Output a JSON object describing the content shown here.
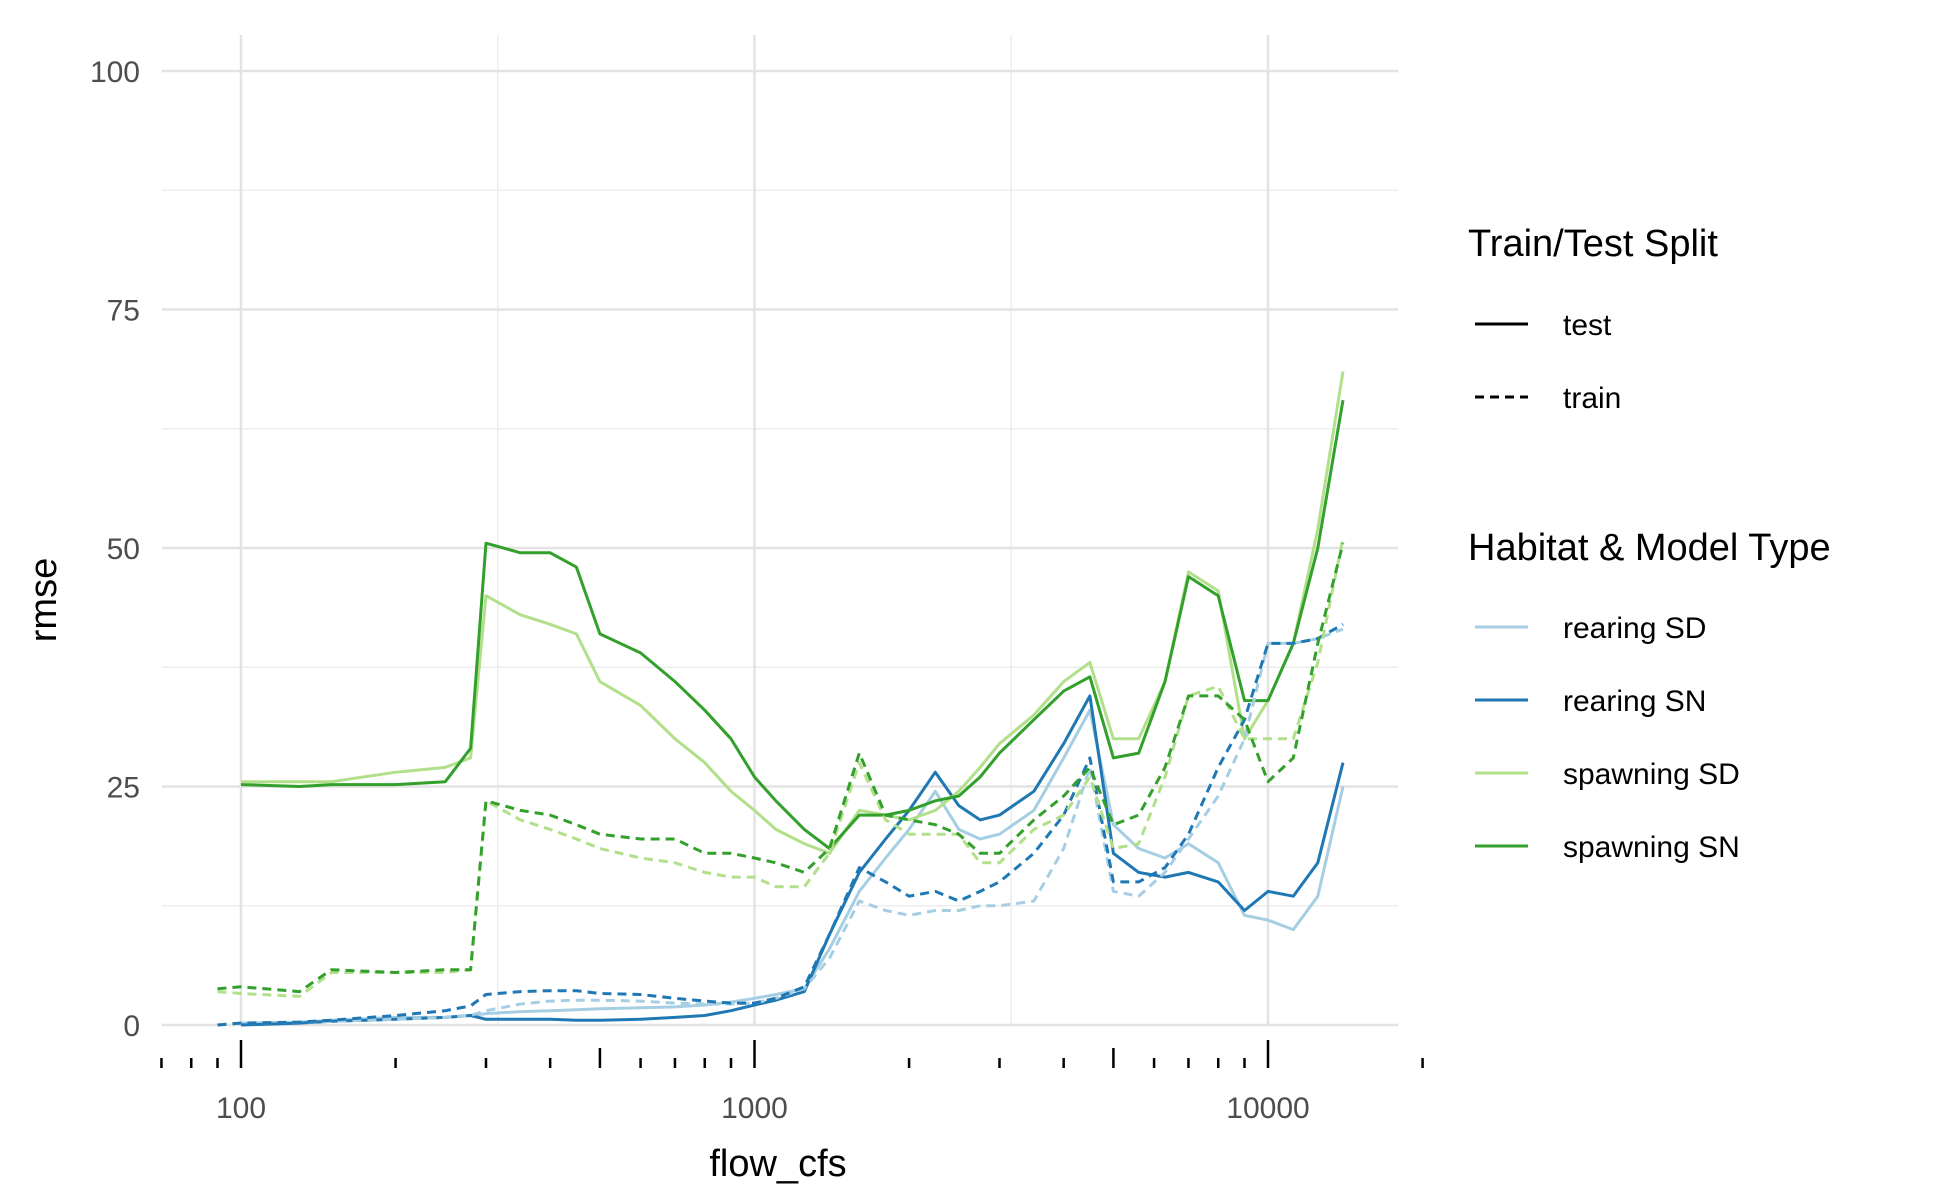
{
  "chart_data": {
    "type": "line",
    "title": "",
    "xlabel": "flow_cfs",
    "ylabel": "rmse",
    "x_scale": "log10",
    "xlim": [
      70,
      20000
    ],
    "ylim": [
      0,
      100
    ],
    "x_ticks": [
      100,
      1000,
      10000
    ],
    "x_tick_labels": [
      "100",
      "1000",
      "10000"
    ],
    "y_ticks": [
      0,
      25,
      50,
      75,
      100
    ],
    "y_tick_labels": [
      "0",
      "25",
      "50",
      "75",
      "100"
    ],
    "grid": true,
    "legend_position": "right",
    "legend_linetype": {
      "title": "Train/Test Split",
      "items": [
        {
          "label": "test",
          "dash": "solid"
        },
        {
          "label": "train",
          "dash": "dashed"
        }
      ]
    },
    "legend_color": {
      "title": "Habitat & Model Type",
      "items": [
        {
          "label": "rearing SD",
          "color": "#a6cee3"
        },
        {
          "label": "rearing SN",
          "color": "#1f78b4"
        },
        {
          "label": "spawning SD",
          "color": "#b2df8a"
        },
        {
          "label": "spawning SN",
          "color": "#33a02c"
        }
      ]
    },
    "series": [
      {
        "habitat": "rearing SD",
        "split": "test",
        "color": "#a6cee3",
        "dash": "solid",
        "x": [
          100,
          130,
          150,
          200,
          250,
          280,
          300,
          350,
          400,
          450,
          500,
          600,
          700,
          800,
          900,
          1000,
          1100,
          1250,
          1400,
          1600,
          1800,
          2000,
          2250,
          2500,
          2750,
          3000,
          3500,
          4000,
          4500,
          5000,
          5600,
          6300,
          7000,
          8000,
          9000,
          10000,
          11200,
          12500,
          14000
        ],
        "y": [
          0.2,
          0.3,
          0.5,
          0.8,
          0.8,
          1.0,
          1.2,
          1.4,
          1.5,
          1.6,
          1.7,
          1.8,
          1.9,
          2.1,
          2.4,
          2.8,
          3.2,
          3.8,
          8.0,
          14.0,
          17.5,
          20.5,
          24.5,
          20.5,
          19.5,
          20.0,
          22.5,
          28.0,
          33.0,
          21.0,
          18.5,
          17.5,
          19.0,
          17.0,
          11.5,
          11.0,
          10.0,
          13.5,
          25.0
        ]
      },
      {
        "habitat": "rearing SN",
        "split": "test",
        "color": "#1f78b4",
        "dash": "solid",
        "x": [
          100,
          130,
          150,
          200,
          250,
          280,
          300,
          350,
          400,
          450,
          500,
          600,
          700,
          800,
          900,
          1000,
          1100,
          1250,
          1400,
          1600,
          1800,
          2000,
          2250,
          2500,
          2750,
          3000,
          3500,
          4000,
          4500,
          5000,
          5600,
          6300,
          7000,
          8000,
          9000,
          10000,
          11200,
          12500,
          14000
        ],
        "y": [
          0.0,
          0.2,
          0.4,
          0.6,
          0.8,
          1.0,
          0.6,
          0.6,
          0.6,
          0.5,
          0.5,
          0.6,
          0.8,
          1.0,
          1.5,
          2.1,
          2.6,
          3.5,
          9.5,
          16.0,
          19.5,
          22.5,
          26.5,
          23.0,
          21.5,
          22.0,
          24.5,
          29.5,
          34.5,
          18.0,
          16.0,
          15.5,
          16.0,
          15.0,
          12.0,
          14.0,
          13.5,
          17.0,
          27.5
        ]
      },
      {
        "habitat": "spawning SD",
        "split": "test",
        "color": "#b2df8a",
        "dash": "solid",
        "x": [
          100,
          130,
          150,
          200,
          250,
          280,
          300,
          350,
          400,
          450,
          500,
          600,
          700,
          800,
          900,
          1000,
          1100,
          1250,
          1400,
          1600,
          1800,
          2000,
          2250,
          2500,
          2750,
          3000,
          3500,
          4000,
          4500,
          5000,
          5600,
          6300,
          7000,
          8000,
          9000,
          10000,
          11200,
          12500,
          14000
        ],
        "y": [
          25.5,
          25.5,
          25.5,
          26.5,
          27.0,
          28.0,
          45.0,
          43.0,
          42.0,
          41.0,
          36.0,
          33.5,
          30.0,
          27.5,
          24.5,
          22.5,
          20.5,
          19.0,
          18.0,
          22.5,
          22.0,
          21.5,
          22.5,
          24.5,
          27.0,
          29.5,
          32.5,
          36.0,
          38.0,
          30.0,
          30.0,
          36.0,
          47.5,
          45.5,
          30.0,
          34.0,
          40.0,
          52.0,
          68.5
        ]
      },
      {
        "habitat": "spawning SN",
        "split": "test",
        "color": "#33a02c",
        "dash": "solid",
        "x": [
          100,
          130,
          150,
          200,
          250,
          280,
          300,
          350,
          400,
          450,
          500,
          600,
          700,
          800,
          900,
          1000,
          1100,
          1250,
          1400,
          1600,
          1800,
          2000,
          2250,
          2500,
          2750,
          3000,
          3500,
          4000,
          4500,
          5000,
          5600,
          6300,
          7000,
          8000,
          9000,
          10000,
          11200,
          12500,
          14000
        ],
        "y": [
          25.2,
          25.0,
          25.2,
          25.2,
          25.5,
          29.0,
          50.5,
          49.5,
          49.5,
          48.0,
          41.0,
          39.0,
          36.0,
          33.0,
          30.0,
          26.0,
          23.5,
          20.5,
          18.5,
          22.0,
          22.0,
          22.5,
          23.5,
          24.0,
          26.0,
          28.5,
          32.0,
          35.0,
          36.5,
          28.0,
          28.5,
          36.0,
          47.0,
          45.0,
          34.0,
          34.0,
          40.0,
          50.0,
          65.5
        ]
      },
      {
        "habitat": "rearing SD",
        "split": "train",
        "color": "#a6cee3",
        "dash": "dashed",
        "x": [
          90,
          100,
          130,
          150,
          200,
          250,
          280,
          300,
          350,
          400,
          450,
          500,
          600,
          700,
          800,
          900,
          1000,
          1100,
          1250,
          1400,
          1600,
          1800,
          2000,
          2250,
          2500,
          2750,
          3000,
          3500,
          4000,
          4500,
          5000,
          5600,
          6300,
          7000,
          8000,
          9000,
          10000,
          11200,
          12500,
          14000
        ],
        "y": [
          0.0,
          0.2,
          0.3,
          0.4,
          0.6,
          0.8,
          1.0,
          1.5,
          2.2,
          2.5,
          2.6,
          2.6,
          2.5,
          2.3,
          2.2,
          2.2,
          2.3,
          2.8,
          3.8,
          7.0,
          13.0,
          12.0,
          11.5,
          12.0,
          12.0,
          12.5,
          12.5,
          13.0,
          18.5,
          27.0,
          14.0,
          13.5,
          16.0,
          19.5,
          24.0,
          30.0,
          40.0,
          40.0,
          40.5,
          41.5
        ]
      },
      {
        "habitat": "rearing SN",
        "split": "train",
        "color": "#1f78b4",
        "dash": "dashed",
        "x": [
          90,
          100,
          130,
          150,
          200,
          250,
          280,
          300,
          350,
          400,
          450,
          500,
          600,
          700,
          800,
          900,
          1000,
          1100,
          1250,
          1400,
          1600,
          1800,
          2000,
          2250,
          2500,
          2750,
          3000,
          3500,
          4000,
          4500,
          5000,
          5600,
          6300,
          7000,
          8000,
          9000,
          10000,
          11200,
          12500,
          14000
        ],
        "y": [
          0.0,
          0.2,
          0.3,
          0.5,
          1.0,
          1.5,
          2.0,
          3.2,
          3.5,
          3.6,
          3.6,
          3.3,
          3.2,
          2.8,
          2.5,
          2.3,
          2.3,
          2.8,
          4.0,
          9.5,
          16.5,
          15.0,
          13.5,
          14.0,
          13.0,
          14.0,
          15.0,
          18.0,
          22.0,
          28.0,
          15.0,
          15.0,
          16.5,
          20.0,
          27.0,
          32.0,
          40.0,
          40.0,
          40.5,
          42.0
        ]
      },
      {
        "habitat": "spawning SD",
        "split": "train",
        "color": "#b2df8a",
        "dash": "dashed",
        "x": [
          90,
          100,
          130,
          150,
          200,
          250,
          280,
          300,
          350,
          400,
          450,
          500,
          600,
          700,
          800,
          900,
          1000,
          1100,
          1250,
          1400,
          1600,
          1800,
          2000,
          2250,
          2500,
          2750,
          3000,
          3500,
          4000,
          4500,
          5000,
          5600,
          6300,
          7000,
          8000,
          9000,
          10000,
          11200,
          12500,
          14000
        ],
        "y": [
          3.5,
          3.3,
          3.0,
          5.5,
          5.5,
          5.5,
          5.8,
          23.5,
          21.5,
          20.5,
          19.5,
          18.5,
          17.5,
          17.0,
          16.0,
          15.5,
          15.5,
          14.5,
          14.5,
          18.0,
          27.5,
          21.5,
          20.0,
          20.0,
          20.0,
          17.0,
          17.0,
          20.5,
          22.0,
          26.0,
          18.5,
          19.0,
          26.0,
          34.5,
          35.5,
          30.0,
          30.0,
          30.0,
          38.0,
          51.0
        ]
      },
      {
        "habitat": "spawning SN",
        "split": "train",
        "color": "#33a02c",
        "dash": "dashed",
        "x": [
          90,
          100,
          130,
          150,
          200,
          250,
          280,
          300,
          350,
          400,
          450,
          500,
          600,
          700,
          800,
          900,
          1000,
          1100,
          1250,
          1400,
          1600,
          1800,
          2000,
          2250,
          2500,
          2750,
          3000,
          3500,
          4000,
          4500,
          5000,
          5600,
          6300,
          7000,
          8000,
          9000,
          10000,
          11200,
          12500,
          14000
        ],
        "y": [
          3.8,
          4.0,
          3.5,
          5.8,
          5.5,
          5.8,
          5.8,
          23.5,
          22.5,
          22.0,
          21.0,
          20.0,
          19.5,
          19.5,
          18.0,
          18.0,
          17.5,
          17.0,
          16.0,
          18.5,
          28.5,
          22.0,
          21.5,
          21.0,
          20.0,
          18.0,
          18.0,
          21.5,
          24.0,
          27.0,
          21.0,
          22.0,
          27.0,
          34.5,
          34.5,
          32.0,
          25.5,
          28.0,
          40.0,
          50.5
        ]
      }
    ]
  }
}
